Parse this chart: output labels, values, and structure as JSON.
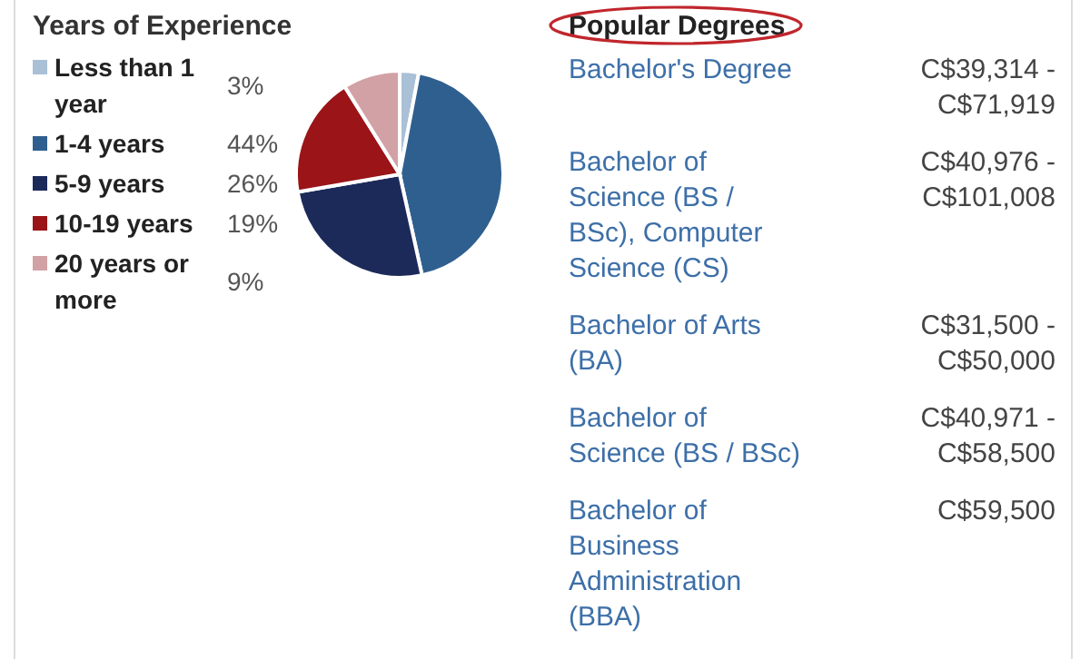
{
  "chart_data": [
    {
      "type": "pie",
      "title": "Years of Experience",
      "legend": "left",
      "categories": [
        "Less than 1 year",
        "1-4 years",
        "5-9 years",
        "10-19 years",
        "20 years or more"
      ],
      "values": [
        3,
        44,
        26,
        19,
        9
      ],
      "value_labels": [
        "3%",
        "44%",
        "26%",
        "19%",
        "9%"
      ],
      "colors": [
        "#a9c0d6",
        "#2f5f8f",
        "#1c2a5a",
        "#9a1418",
        "#d2a1a5"
      ]
    },
    {
      "type": "other",
      "title": "Popular Degrees",
      "categories": [
        "Bachelor's Degree",
        "Bachelor of Science (BS / BSc), Computer Science (CS)",
        "Bachelor of Arts (BA)",
        "Bachelor of Science (BS / BSc)",
        "Bachelor of Business Administration (BBA)"
      ],
      "value_labels": [
        "C$39,314 - C$71,919",
        "C$40,976 - C$101,008",
        "C$31,500 - C$50,000",
        "C$40,971 - C$58,500",
        "C$59,500"
      ]
    }
  ]
}
